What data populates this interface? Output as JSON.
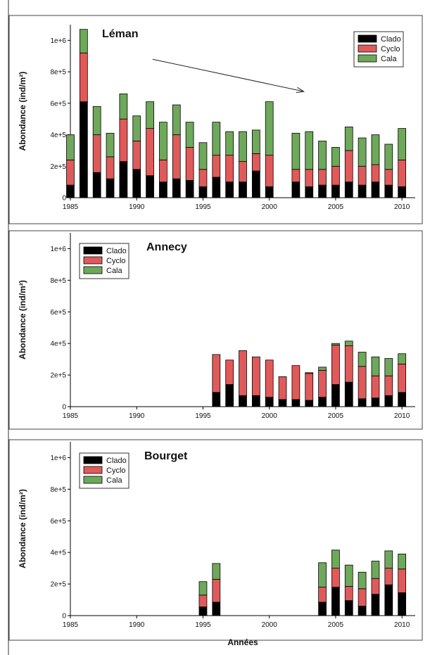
{
  "chart_data": [
    {
      "type": "bar",
      "stacked": true,
      "title": "Léman",
      "ylabel": "Abondance (ind/m²)",
      "xlabel": "",
      "xlim": [
        1985,
        2011
      ],
      "ylim": [
        0,
        1100000
      ],
      "xticks": [
        1985,
        1990,
        1995,
        2000,
        2005,
        2010
      ],
      "xtick_labels": [
        "1985",
        "1990",
        "1995",
        "2000",
        "2005",
        "2010"
      ],
      "yticks": [
        0,
        200000,
        400000,
        600000,
        800000,
        1000000
      ],
      "ytick_labels": [
        "0",
        "2e+5",
        "4e+5",
        "6e+5",
        "8e+5",
        "1e+6"
      ],
      "legend_position": "top-right",
      "annotation": "arrow from 1991 (~880000) to 2002 (~670000)",
      "x": [
        1985,
        1986,
        1987,
        1988,
        1989,
        1990,
        1991,
        1992,
        1993,
        1994,
        1995,
        1996,
        1997,
        1998,
        1999,
        2000,
        2002,
        2003,
        2004,
        2005,
        2006,
        2007,
        2008,
        2009,
        2010
      ],
      "series": [
        {
          "name": "Clado",
          "color": "#000000",
          "values": [
            80000,
            610000,
            160000,
            120000,
            230000,
            180000,
            140000,
            100000,
            120000,
            110000,
            70000,
            130000,
            100000,
            100000,
            170000,
            70000,
            100000,
            70000,
            80000,
            80000,
            100000,
            80000,
            100000,
            80000,
            70000
          ]
        },
        {
          "name": "Cyclo",
          "color": "#e05a5a",
          "values": [
            160000,
            310000,
            240000,
            140000,
            270000,
            180000,
            300000,
            140000,
            280000,
            210000,
            110000,
            140000,
            170000,
            130000,
            110000,
            200000,
            80000,
            110000,
            100000,
            120000,
            200000,
            120000,
            110000,
            100000,
            170000
          ]
        },
        {
          "name": "Cala",
          "color": "#6ea85a",
          "values": [
            160000,
            150000,
            180000,
            150000,
            160000,
            160000,
            170000,
            240000,
            190000,
            160000,
            170000,
            210000,
            150000,
            190000,
            150000,
            340000,
            230000,
            240000,
            180000,
            120000,
            150000,
            180000,
            190000,
            160000,
            200000
          ]
        }
      ]
    },
    {
      "type": "bar",
      "stacked": true,
      "title": "Annecy",
      "ylabel": "Abondance (ind/m²)",
      "xlabel": "",
      "xlim": [
        1985,
        2011
      ],
      "ylim": [
        0,
        1100000
      ],
      "xticks": [
        1985,
        1990,
        1995,
        2000,
        2005,
        2010
      ],
      "xtick_labels": [
        "1985",
        "1990",
        "1995",
        "2000",
        "2005",
        "2010"
      ],
      "yticks": [
        0,
        200000,
        400000,
        600000,
        800000,
        1000000
      ],
      "ytick_labels": [
        "0",
        "2e+5",
        "4e+5",
        "6e+5",
        "8e+5",
        "1e+6"
      ],
      "legend_position": "top-left",
      "x": [
        1996,
        1997,
        1998,
        1999,
        2000,
        2001,
        2002,
        2003,
        2004,
        2005,
        2006,
        2007,
        2008,
        2009,
        2010
      ],
      "series": [
        {
          "name": "Clado",
          "color": "#000000",
          "values": [
            90000,
            140000,
            70000,
            70000,
            60000,
            45000,
            45000,
            40000,
            60000,
            140000,
            155000,
            50000,
            55000,
            70000,
            90000
          ]
        },
        {
          "name": "Cyclo",
          "color": "#e05a5a",
          "values": [
            240000,
            155000,
            285000,
            245000,
            235000,
            145000,
            215000,
            170000,
            170000,
            250000,
            230000,
            205000,
            140000,
            125000,
            180000
          ]
        },
        {
          "name": "Cala",
          "color": "#6ea85a",
          "values": [
            0,
            0,
            0,
            0,
            0,
            0,
            0,
            5000,
            20000,
            10000,
            30000,
            90000,
            120000,
            110000,
            65000
          ]
        }
      ]
    },
    {
      "type": "bar",
      "stacked": true,
      "title": "Bourget",
      "ylabel": "Abondance (ind/m²)",
      "xlabel": "Années",
      "xlim": [
        1985,
        2011
      ],
      "ylim": [
        0,
        1100000
      ],
      "xticks": [
        1985,
        1990,
        1995,
        2000,
        2005,
        2010
      ],
      "xtick_labels": [
        "1985",
        "1990",
        "1995",
        "2000",
        "2005",
        "2010"
      ],
      "yticks": [
        0,
        200000,
        400000,
        600000,
        800000,
        1000000
      ],
      "ytick_labels": [
        "0",
        "2e+5",
        "4e+5",
        "6e+5",
        "8e+5",
        "1e+6"
      ],
      "legend_position": "top-left",
      "x": [
        1995,
        1996,
        2004,
        2005,
        2006,
        2007,
        2008,
        2009,
        2010
      ],
      "series": [
        {
          "name": "Clado",
          "color": "#000000",
          "values": [
            55000,
            85000,
            85000,
            180000,
            95000,
            60000,
            135000,
            195000,
            145000
          ]
        },
        {
          "name": "Cyclo",
          "color": "#e05a5a",
          "values": [
            75000,
            145000,
            95000,
            120000,
            90000,
            110000,
            100000,
            105000,
            150000
          ]
        },
        {
          "name": "Cala",
          "color": "#6ea85a",
          "values": [
            85000,
            100000,
            155000,
            115000,
            135000,
            105000,
            110000,
            110000,
            95000
          ]
        }
      ]
    }
  ]
}
